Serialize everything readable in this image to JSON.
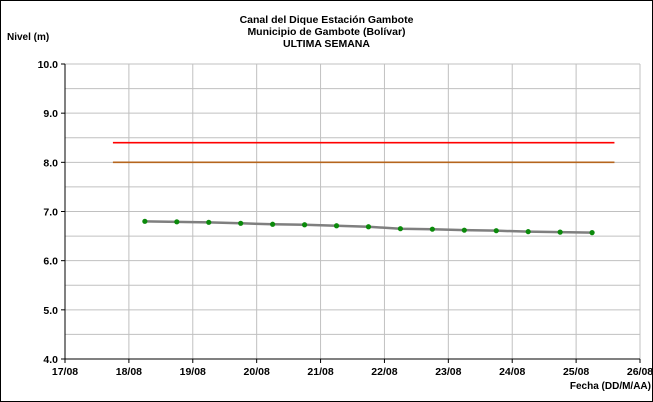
{
  "chart_data": {
    "type": "line",
    "title": "Canal del Dique  Estación Gambote",
    "subtitle": "Municipio de Gambote (Bolívar)",
    "subtitle2": "ULTIMA SEMANA",
    "ylabel": "Nivel (m)",
    "xlabel": "Fecha (DD/M/AA)",
    "ylim": [
      4.0,
      10.0
    ],
    "yticks": [
      "10.0",
      "9.0",
      "8.0",
      "7.0",
      "6.0",
      "5.0",
      "4.0"
    ],
    "xticks": [
      "17/08",
      "18/08",
      "19/08",
      "20/08",
      "21/08",
      "22/08",
      "23/08",
      "24/08",
      "25/08",
      "26/08"
    ],
    "grid": true,
    "reference_lines": [
      {
        "y": 8.4,
        "color": "#ff0000",
        "x_start": 17.75,
        "x_end": 25.6
      },
      {
        "y": 8.0,
        "color": "#b5651d",
        "x_start": 17.75,
        "x_end": 25.6
      }
    ],
    "series": [
      {
        "line_color": "#7f7f7f",
        "marker_color": "#0b8a0b",
        "x": [
          18.25,
          18.75,
          19.25,
          19.75,
          20.25,
          20.75,
          21.25,
          21.75,
          22.25,
          22.75,
          23.25,
          23.75,
          24.25,
          24.75,
          25.25
        ],
        "y": [
          6.8,
          6.79,
          6.78,
          6.76,
          6.74,
          6.73,
          6.71,
          6.69,
          6.65,
          6.64,
          6.62,
          6.61,
          6.59,
          6.58,
          6.57
        ]
      }
    ]
  }
}
